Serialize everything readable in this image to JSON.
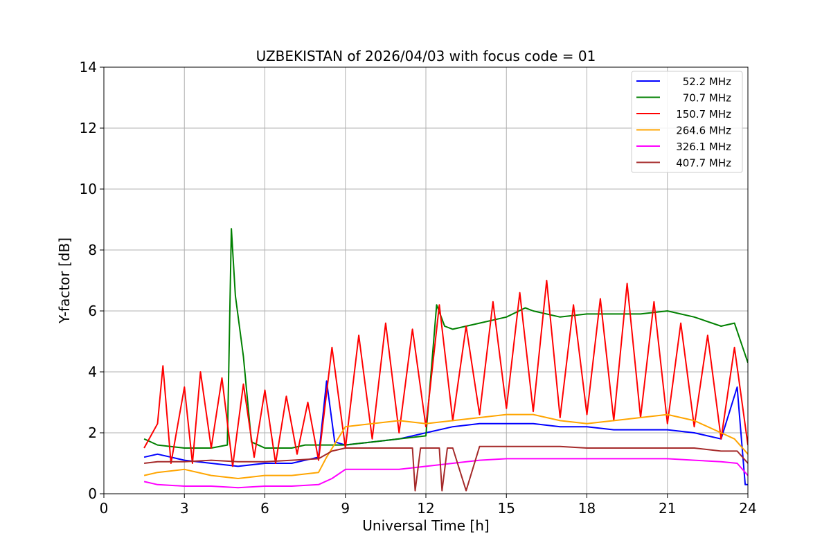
{
  "chart_data": {
    "type": "line",
    "title": "UZBEKISTAN of 2026/04/03 with focus code = 01",
    "xlabel": "Universal Time [h]",
    "ylabel": "Y-factor [dB]",
    "xlim": [
      0,
      24
    ],
    "ylim": [
      0,
      14
    ],
    "xticks": [
      "0",
      "3",
      "6",
      "9",
      "12",
      "15",
      "18",
      "21",
      "24"
    ],
    "yticks": [
      "0",
      "2",
      "4",
      "6",
      "8",
      "10",
      "12",
      "14"
    ],
    "grid": true,
    "legend_position": "top-right",
    "series": [
      {
        "name": "52.2 MHz",
        "color": "#0000ff",
        "x": [
          1.5,
          2.0,
          3.0,
          4.0,
          5.0,
          6.0,
          7.0,
          8.0,
          8.3,
          8.6,
          9.0,
          10.0,
          11.0,
          12.0,
          13.0,
          14.0,
          15.0,
          16.0,
          17.0,
          18.0,
          19.0,
          20.0,
          21.0,
          22.0,
          23.0,
          23.6,
          23.9,
          24.0
        ],
        "y": [
          1.2,
          1.3,
          1.1,
          1.0,
          0.9,
          1.0,
          1.0,
          1.2,
          3.7,
          1.7,
          1.6,
          1.7,
          1.8,
          2.0,
          2.2,
          2.3,
          2.3,
          2.3,
          2.2,
          2.2,
          2.1,
          2.1,
          2.1,
          2.0,
          1.8,
          3.5,
          0.3,
          0.3
        ]
      },
      {
        "name": "70.7 MHz",
        "color": "#008000",
        "x": [
          1.5,
          2.0,
          3.0,
          4.0,
          4.6,
          4.75,
          4.9,
          5.2,
          5.5,
          6.0,
          7.0,
          7.5,
          8.0,
          9.0,
          10.0,
          11.0,
          12.0,
          12.4,
          12.7,
          13.0,
          14.0,
          15.0,
          15.7,
          16.0,
          17.0,
          18.0,
          19.0,
          20.0,
          21.0,
          22.0,
          23.0,
          23.5,
          24.0
        ],
        "y": [
          1.8,
          1.6,
          1.5,
          1.5,
          1.6,
          8.7,
          6.5,
          4.5,
          1.7,
          1.5,
          1.5,
          1.6,
          1.6,
          1.6,
          1.7,
          1.8,
          1.9,
          6.2,
          5.5,
          5.4,
          5.6,
          5.8,
          6.1,
          6.0,
          5.8,
          5.9,
          5.9,
          5.9,
          6.0,
          5.8,
          5.5,
          5.6,
          4.3
        ]
      },
      {
        "name": "150.7 MHz",
        "color": "#ff0000",
        "x": [
          1.5,
          2.0,
          2.2,
          2.5,
          3.0,
          3.3,
          3.6,
          4.0,
          4.4,
          4.8,
          5.2,
          5.6,
          6.0,
          6.4,
          6.8,
          7.2,
          7.6,
          8.0,
          8.5,
          9.0,
          9.5,
          10.0,
          10.5,
          11.0,
          11.5,
          12.0,
          12.5,
          13.0,
          13.5,
          14.0,
          14.5,
          15.0,
          15.5,
          16.0,
          16.5,
          17.0,
          17.5,
          18.0,
          18.5,
          19.0,
          19.5,
          20.0,
          20.5,
          21.0,
          21.5,
          22.0,
          22.5,
          23.0,
          23.5,
          24.0
        ],
        "y": [
          1.5,
          2.3,
          4.2,
          1.0,
          3.5,
          1.0,
          4.0,
          1.5,
          3.8,
          0.9,
          3.6,
          1.2,
          3.4,
          1.0,
          3.2,
          1.3,
          3.0,
          1.1,
          4.8,
          1.5,
          5.2,
          1.8,
          5.6,
          2.0,
          5.4,
          2.2,
          6.2,
          2.4,
          5.5,
          2.6,
          6.3,
          2.8,
          6.6,
          2.7,
          7.0,
          2.5,
          6.2,
          2.6,
          6.4,
          2.4,
          6.9,
          2.5,
          6.3,
          2.3,
          5.6,
          2.2,
          5.2,
          1.8,
          4.8,
          1.6
        ]
      },
      {
        "name": "264.6 MHz",
        "color": "#ffa500",
        "x": [
          1.5,
          2.0,
          3.0,
          4.0,
          5.0,
          6.0,
          7.0,
          8.0,
          8.3,
          9.0,
          10.0,
          11.0,
          12.0,
          13.0,
          14.0,
          15.0,
          16.0,
          17.0,
          18.0,
          19.0,
          20.0,
          21.0,
          22.0,
          23.0,
          23.5,
          24.0
        ],
        "y": [
          0.6,
          0.7,
          0.8,
          0.6,
          0.5,
          0.6,
          0.6,
          0.7,
          1.2,
          2.2,
          2.3,
          2.4,
          2.3,
          2.4,
          2.5,
          2.6,
          2.6,
          2.4,
          2.3,
          2.4,
          2.5,
          2.6,
          2.4,
          2.0,
          1.8,
          1.3
        ]
      },
      {
        "name": "326.1 MHz",
        "color": "#ff00ff",
        "x": [
          1.5,
          2.0,
          3.0,
          4.0,
          5.0,
          6.0,
          7.0,
          8.0,
          8.5,
          9.0,
          10.0,
          11.0,
          12.0,
          13.0,
          14.0,
          15.0,
          16.0,
          17.0,
          18.0,
          19.0,
          20.0,
          21.0,
          22.0,
          23.0,
          23.6,
          24.0
        ],
        "y": [
          0.4,
          0.3,
          0.25,
          0.25,
          0.2,
          0.25,
          0.25,
          0.3,
          0.5,
          0.8,
          0.8,
          0.8,
          0.9,
          1.0,
          1.1,
          1.15,
          1.15,
          1.15,
          1.15,
          1.15,
          1.15,
          1.15,
          1.1,
          1.05,
          1.0,
          0.6
        ]
      },
      {
        "name": "407.7 MHz",
        "color": "#a52a2a",
        "x": [
          1.5,
          2.0,
          3.0,
          4.0,
          5.0,
          6.0,
          7.0,
          8.0,
          8.5,
          9.0,
          10.0,
          11.0,
          11.5,
          11.6,
          11.8,
          12.0,
          12.5,
          12.6,
          12.8,
          13.0,
          13.5,
          14.0,
          15.0,
          16.0,
          17.0,
          18.0,
          19.0,
          20.0,
          21.0,
          22.0,
          23.0,
          23.6,
          24.0
        ],
        "y": [
          1.0,
          1.05,
          1.05,
          1.1,
          1.05,
          1.05,
          1.1,
          1.15,
          1.4,
          1.5,
          1.5,
          1.5,
          1.5,
          0.1,
          1.5,
          1.5,
          1.5,
          0.1,
          1.5,
          1.5,
          0.1,
          1.55,
          1.55,
          1.55,
          1.55,
          1.5,
          1.5,
          1.5,
          1.5,
          1.5,
          1.4,
          1.4,
          1.0
        ]
      }
    ]
  }
}
